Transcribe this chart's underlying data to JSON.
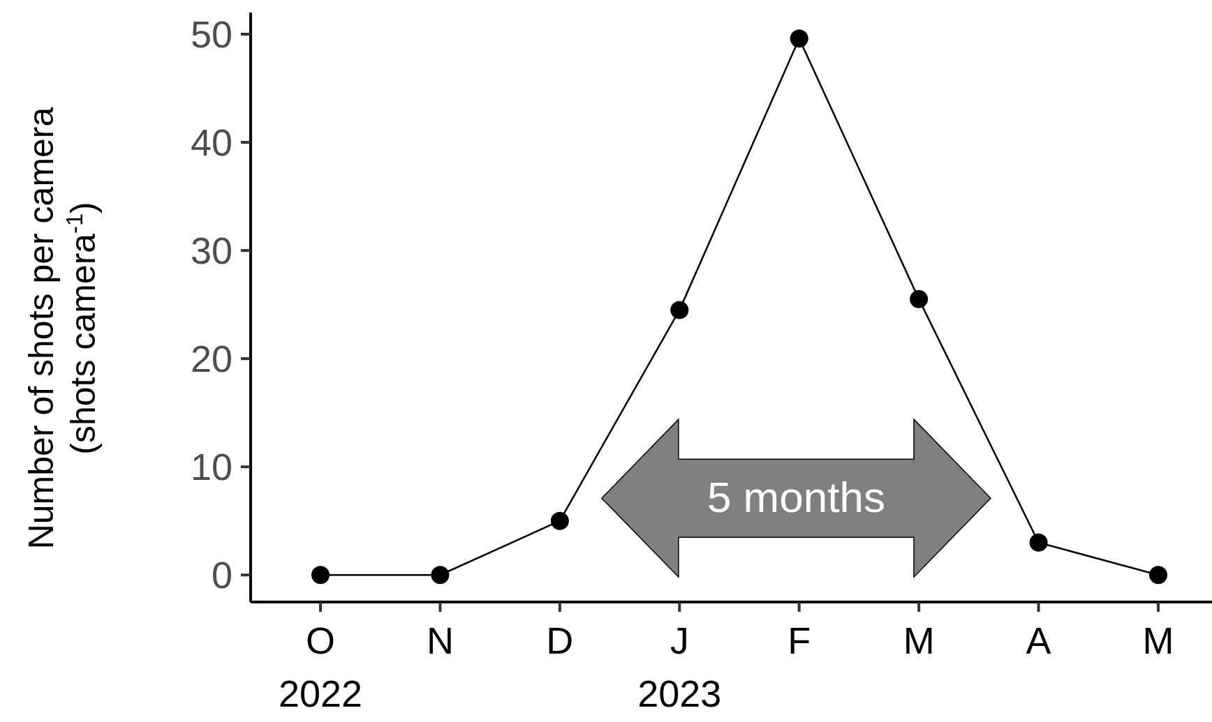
{
  "chart_data": {
    "type": "line",
    "categories": [
      "O",
      "N",
      "D",
      "J",
      "F",
      "M",
      "A",
      "M"
    ],
    "series": [
      {
        "color": "#000000",
        "values": [
          0,
          0,
          5,
          24.5,
          49.6,
          25.5,
          3,
          0
        ]
      }
    ],
    "ylabel": "Number of shots per camera\n(shots camera$^{-1}$)",
    "ylim": [
      -2.5,
      52
    ],
    "yticks": [
      0,
      10,
      20,
      30,
      40,
      50
    ],
    "marker": "circle",
    "line_style": "solid",
    "grid": false,
    "annotations": [
      "2022",
      "2023",
      "5 months"
    ]
  }
}
